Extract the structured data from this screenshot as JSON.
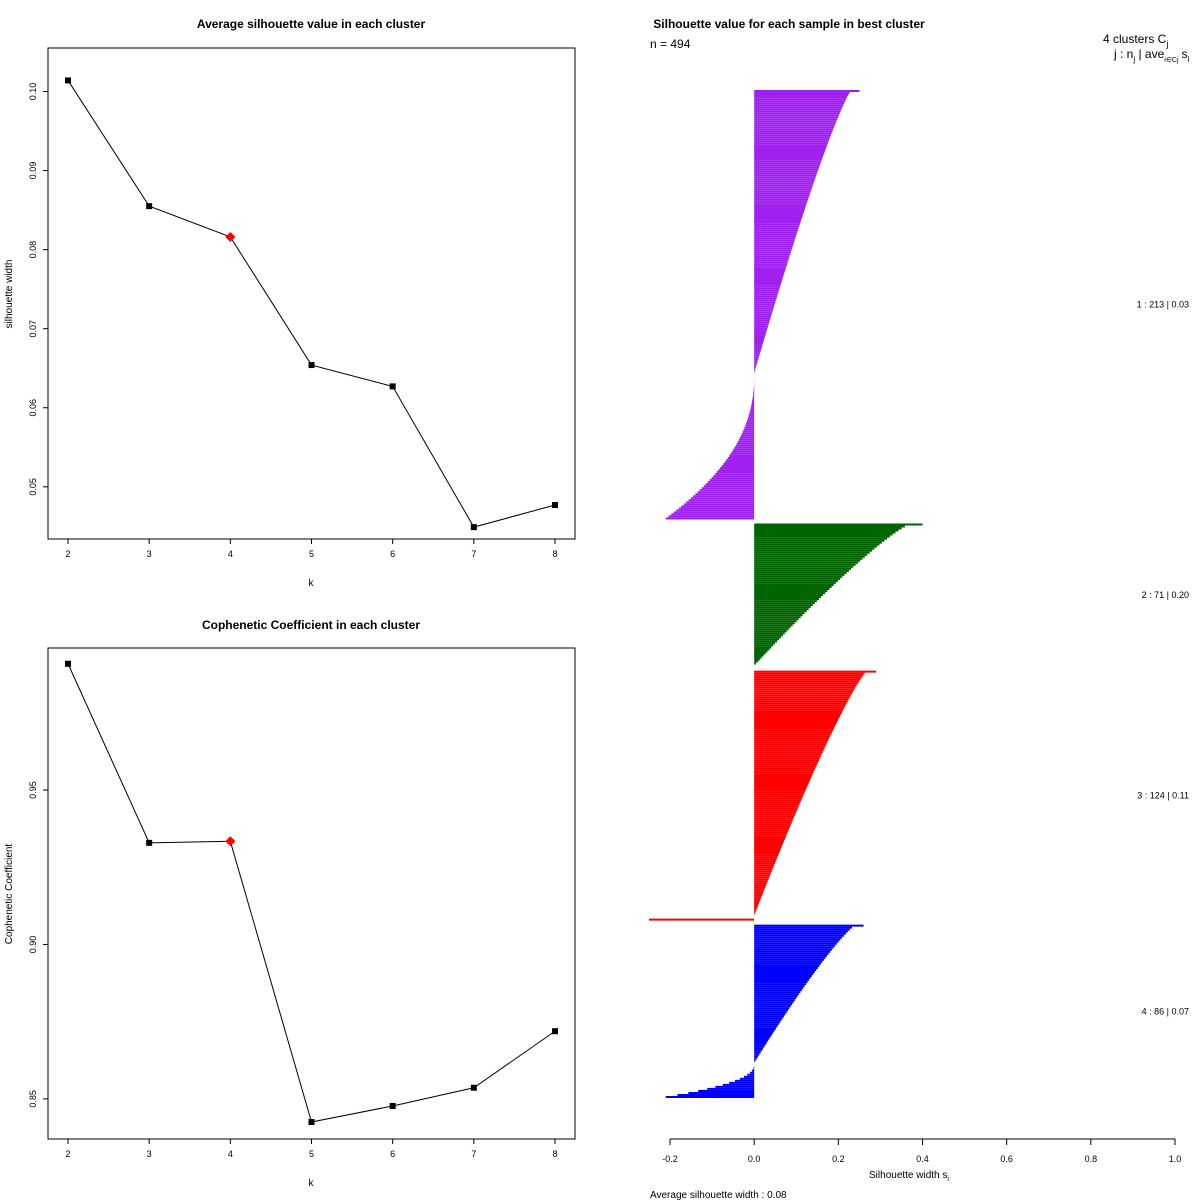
{
  "chart_data": [
    {
      "type": "line",
      "title": "Average silhouette value in each cluster",
      "xlabel": "k",
      "ylabel": "silhouette width",
      "x": [
        2,
        3,
        4,
        5,
        6,
        7,
        8
      ],
      "values": [
        0.1014,
        0.0855,
        0.0816,
        0.0654,
        0.0627,
        0.0449,
        0.0477
      ],
      "highlight_k": 4,
      "xlim": [
        2,
        8
      ],
      "ylim": [
        0.0434,
        0.1055
      ],
      "x_ticks": [
        "2",
        "3",
        "4",
        "5",
        "6",
        "7",
        "8"
      ],
      "y_ticks": [
        "0.05",
        "0.06",
        "0.07",
        "0.08",
        "0.09",
        "0.10"
      ],
      "highlight_color": "#ff0000"
    },
    {
      "type": "line",
      "title": "Cophenetic Coefficient in each cluster",
      "xlabel": "k",
      "ylabel": "Cophenetic Coefficient",
      "x": [
        2,
        3,
        4,
        5,
        6,
        7,
        8
      ],
      "values": [
        0.9909,
        0.9329,
        0.9334,
        0.8425,
        0.8477,
        0.8536,
        0.8719
      ],
      "highlight_k": 4,
      "xlim": [
        2,
        8
      ],
      "ylim": [
        0.837,
        0.996
      ],
      "x_ticks": [
        "2",
        "3",
        "4",
        "5",
        "6",
        "7",
        "8"
      ],
      "y_ticks": [
        "0.85",
        "0.90",
        "0.95"
      ],
      "highlight_color": "#ff0000"
    },
    {
      "type": "bar",
      "orientation": "horizontal",
      "title": "Silhouette value for each sample in best cluster",
      "n_label": "n = 494",
      "clusters_label": "4  clusters  C",
      "clusters_sub": "j",
      "header_label": "j :  n",
      "header_tail": " | ave",
      "header_sub": "i∈Cj",
      "header_s": "s",
      "header_si": "i",
      "xlabel": "Silhouette width s",
      "xlabel_sub": "i",
      "xlim": [
        -0.2,
        1.0
      ],
      "x_ticks": [
        "-0.2",
        "0.0",
        "0.2",
        "0.4",
        "0.6",
        "0.8",
        "1.0"
      ],
      "footer": "Average silhouette width :  0.08",
      "clusters": [
        {
          "id": 1,
          "n": 213,
          "ave": "0.03",
          "label": "1 :   213  |  0.03",
          "color": "#a020f0",
          "max": 0.25,
          "min": -0.21,
          "zero_frac": 0.66
        },
        {
          "id": 2,
          "n": 71,
          "ave": "0.20",
          "label": "2 :   71  |  0.20",
          "color": "#006400",
          "max": 0.4,
          "min": 0.02,
          "zero_frac": 1.0
        },
        {
          "id": 3,
          "n": 124,
          "ave": "0.11",
          "label": "3 :   124  |  0.11",
          "color": "#ff0000",
          "max": 0.29,
          "min": -0.25,
          "zero_frac": 0.98
        },
        {
          "id": 4,
          "n": 86,
          "ave": "0.07",
          "label": "4 :   86  |  0.07",
          "color": "#0000ff",
          "max": 0.26,
          "min": -0.21,
          "zero_frac": 0.8
        }
      ]
    }
  ]
}
